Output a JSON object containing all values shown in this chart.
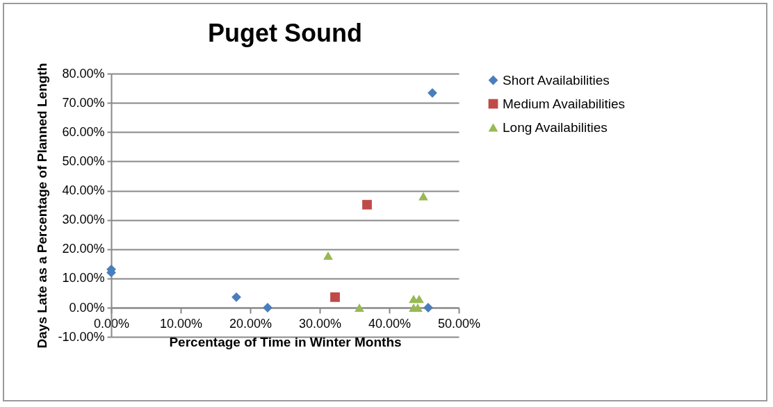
{
  "chart_data": {
    "type": "scatter",
    "title": "Puget Sound",
    "xlabel": "Percentage of Time in Winter Months",
    "ylabel": "Days Late as a Percentage of Planned Length",
    "xlim": [
      0,
      50
    ],
    "xticks": [
      {
        "value": 0,
        "label": "0.00%"
      },
      {
        "value": 10,
        "label": "10.00%"
      },
      {
        "value": 20,
        "label": "20.00%"
      },
      {
        "value": 30,
        "label": "30.00%"
      },
      {
        "value": 40,
        "label": "40.00%"
      },
      {
        "value": 50,
        "label": "50.00%"
      }
    ],
    "ylim": [
      -10,
      80
    ],
    "yticks": [
      {
        "value": -10,
        "label": "-10.00%"
      },
      {
        "value": 0,
        "label": "0.00%"
      },
      {
        "value": 10,
        "label": "10.00%"
      },
      {
        "value": 20,
        "label": "20.00%"
      },
      {
        "value": 30,
        "label": "30.00%"
      },
      {
        "value": 40,
        "label": "40.00%"
      },
      {
        "value": 50,
        "label": "50.00%"
      },
      {
        "value": 60,
        "label": "60.00%"
      },
      {
        "value": 70,
        "label": "70.00%"
      },
      {
        "value": 80,
        "label": "80.00%"
      }
    ],
    "grid": "y",
    "legend": "right",
    "series": [
      {
        "name": "Short Availabilities",
        "color": "#4a7ebb",
        "marker": "diamond",
        "x": [
          0,
          0,
          18.0,
          22.5,
          46.2,
          45.6
        ],
        "values": [
          13.1,
          12.0,
          3.6,
          0,
          73.4,
          0
        ]
      },
      {
        "name": "Medium Availabilities",
        "color": "#be4b48",
        "marker": "square",
        "x": [
          36.8,
          32.2
        ],
        "values": [
          35.2,
          3.6
        ]
      },
      {
        "name": "Long Availabilities",
        "color": "#98b954",
        "marker": "triangle",
        "x": [
          31.2,
          35.7,
          43.5,
          44.3,
          43.5,
          44.1,
          44.9
        ],
        "values": [
          17.8,
          0,
          3.0,
          3.0,
          0,
          0,
          38.1
        ]
      }
    ]
  }
}
